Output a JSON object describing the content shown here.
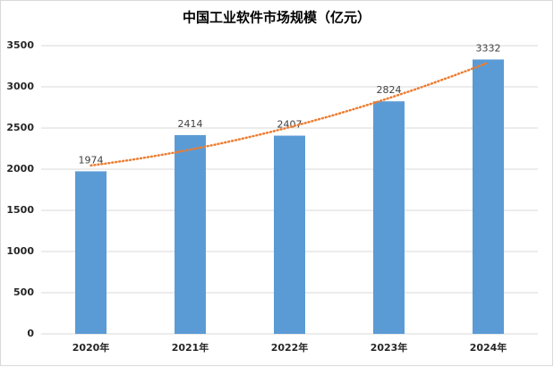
{
  "chart_data": {
    "type": "bar",
    "title": "中国工业软件市场规模（亿元）",
    "categories": [
      "2020年",
      "2021年",
      "2022年",
      "2023年",
      "2024年"
    ],
    "values": [
      1974,
      2414,
      2407,
      2824,
      3332
    ],
    "color": "#5b9bd5",
    "ylim": [
      0,
      3500
    ],
    "yticks": [
      0,
      500,
      1000,
      1500,
      2000,
      2500,
      3000,
      3500
    ],
    "grid": true,
    "trendline": "polynomial",
    "trendline_color": "#ed7d31"
  }
}
